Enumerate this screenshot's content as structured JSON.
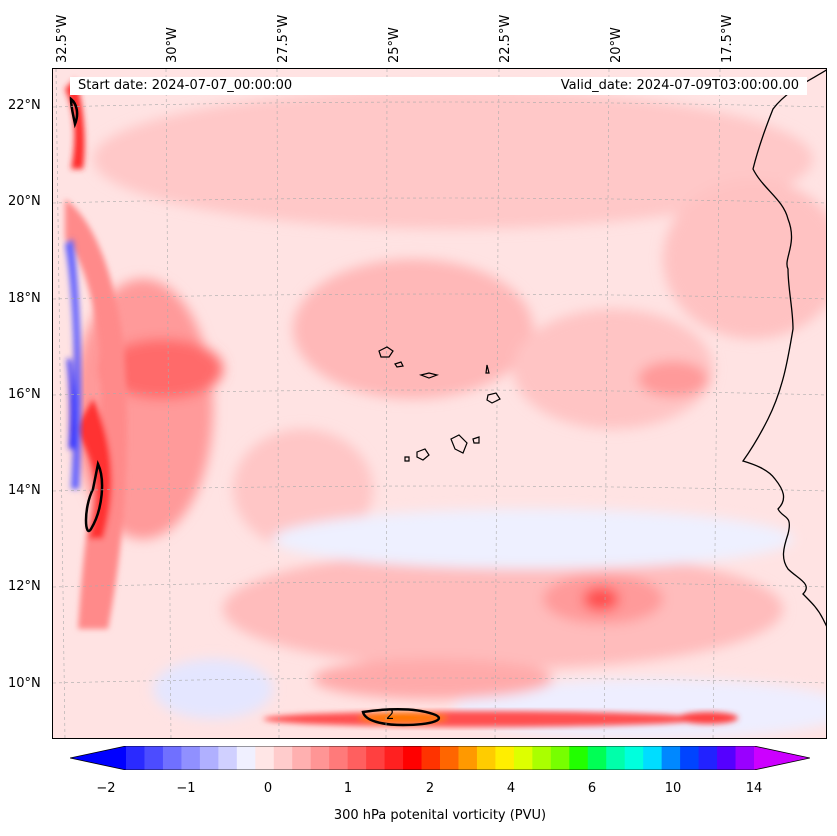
{
  "map": {
    "start_date": "Start date: 2024-07-07_00:00:00",
    "valid_date": "Valid_date: 2024-07-09T03:00:00.00",
    "contour_label": "2",
    "lon_labels": [
      "32.5°W",
      "30°W",
      "27.5°W",
      "25°W",
      "22.5°W",
      "20°W",
      "17.5°W"
    ],
    "lat_labels": [
      "22°N",
      "20°N",
      "18°N",
      "16°N",
      "14°N",
      "12°N",
      "10°N"
    ],
    "extent": {
      "lon_min": -33.0,
      "lon_max": -15.5,
      "lat_min": 8.9,
      "lat_max": 22.8
    }
  },
  "colorbar": {
    "label": "300 hPa potenital vorticity (PVU)",
    "ticks": [
      "−2",
      "−1",
      "0",
      "1",
      "2",
      "4",
      "6",
      "10",
      "14"
    ],
    "colors": [
      "#0000ff",
      "#2a2aff",
      "#4c4cff",
      "#7070ff",
      "#9090ff",
      "#b0b0ff",
      "#d0d0ff",
      "#f0f0ff",
      "#ffe6e6",
      "#ffcccc",
      "#ffb0b0",
      "#ff9595",
      "#ff7a7a",
      "#ff5f5f",
      "#ff4040",
      "#ff2020",
      "#ff0000",
      "#ff3300",
      "#ff6600",
      "#ff9900",
      "#ffcc00",
      "#ffee00",
      "#ddff00",
      "#aaff00",
      "#77ff00",
      "#22ff00",
      "#00ff55",
      "#00ffaa",
      "#00ffdd",
      "#00ddff",
      "#0088ff",
      "#0044ff",
      "#2222ff",
      "#5500ff",
      "#9900ff",
      "#cc00ff"
    ]
  },
  "colors": {
    "coast": "#000000",
    "grid": "#aaaaaa"
  }
}
